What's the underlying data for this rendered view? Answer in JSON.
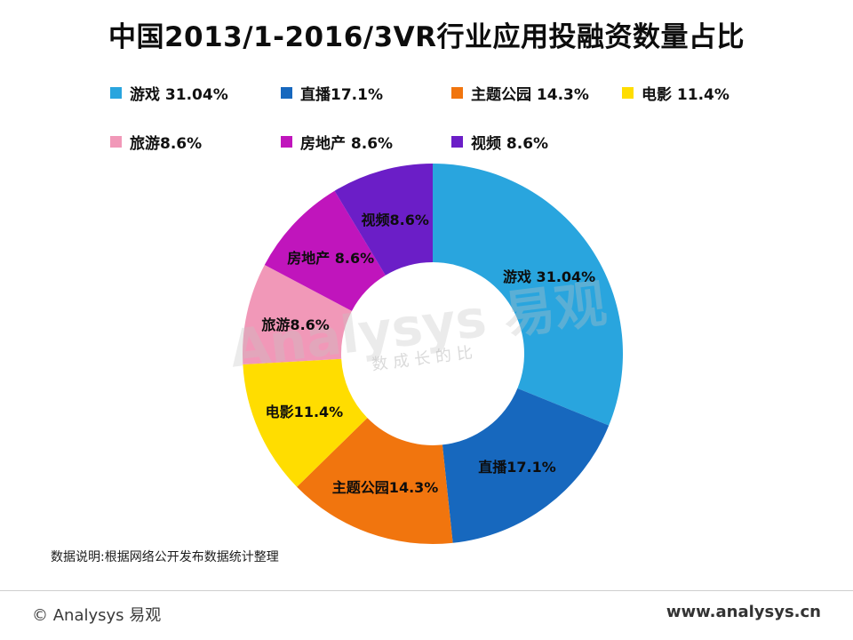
{
  "title": "中国2013/1-2016/3VR行业应用投融资数量占比",
  "footnote": "数据说明:根据网络公开发布数据统计整理",
  "footer": {
    "left": "© Analysys 易观",
    "right": "www.analysys.cn"
  },
  "watermark": {
    "main": "Analysys 易观",
    "sub": "数成长的比"
  },
  "chart_data": {
    "type": "pie",
    "donut": true,
    "title": "中国2013/1-2016/3VR行业应用投融资数量占比",
    "start_angle_deg": 0,
    "direction": "clockwise",
    "legend_position": "top",
    "series": [
      {
        "name": "游戏",
        "value": 31.04,
        "legend_label": "游戏 31.04%",
        "slice_label": "游戏 31.04%",
        "color": "#29A5DE"
      },
      {
        "name": "直播",
        "value": 17.1,
        "legend_label": "直播17.1%",
        "slice_label": "直播17.1%",
        "color": "#1768BE"
      },
      {
        "name": "主题公园",
        "value": 14.3,
        "legend_label": "主题公园 14.3%",
        "slice_label": "主题公园14.3%",
        "color": "#F1750E"
      },
      {
        "name": "电影",
        "value": 11.4,
        "legend_label": "电影 11.4%",
        "slice_label": "电影11.4%",
        "color": "#FFDD00"
      },
      {
        "name": "旅游",
        "value": 8.6,
        "legend_label": "旅游8.6%",
        "slice_label": "旅游8.6%",
        "color": "#F198B8"
      },
      {
        "name": "房地产",
        "value": 8.6,
        "legend_label": "房地产 8.6%",
        "slice_label": "房地产 8.6%",
        "color": "#C015BC"
      },
      {
        "name": "视频",
        "value": 8.6,
        "legend_label": "视频 8.6%",
        "slice_label": "视频8.6%",
        "color": "#6B1EC7"
      }
    ]
  }
}
